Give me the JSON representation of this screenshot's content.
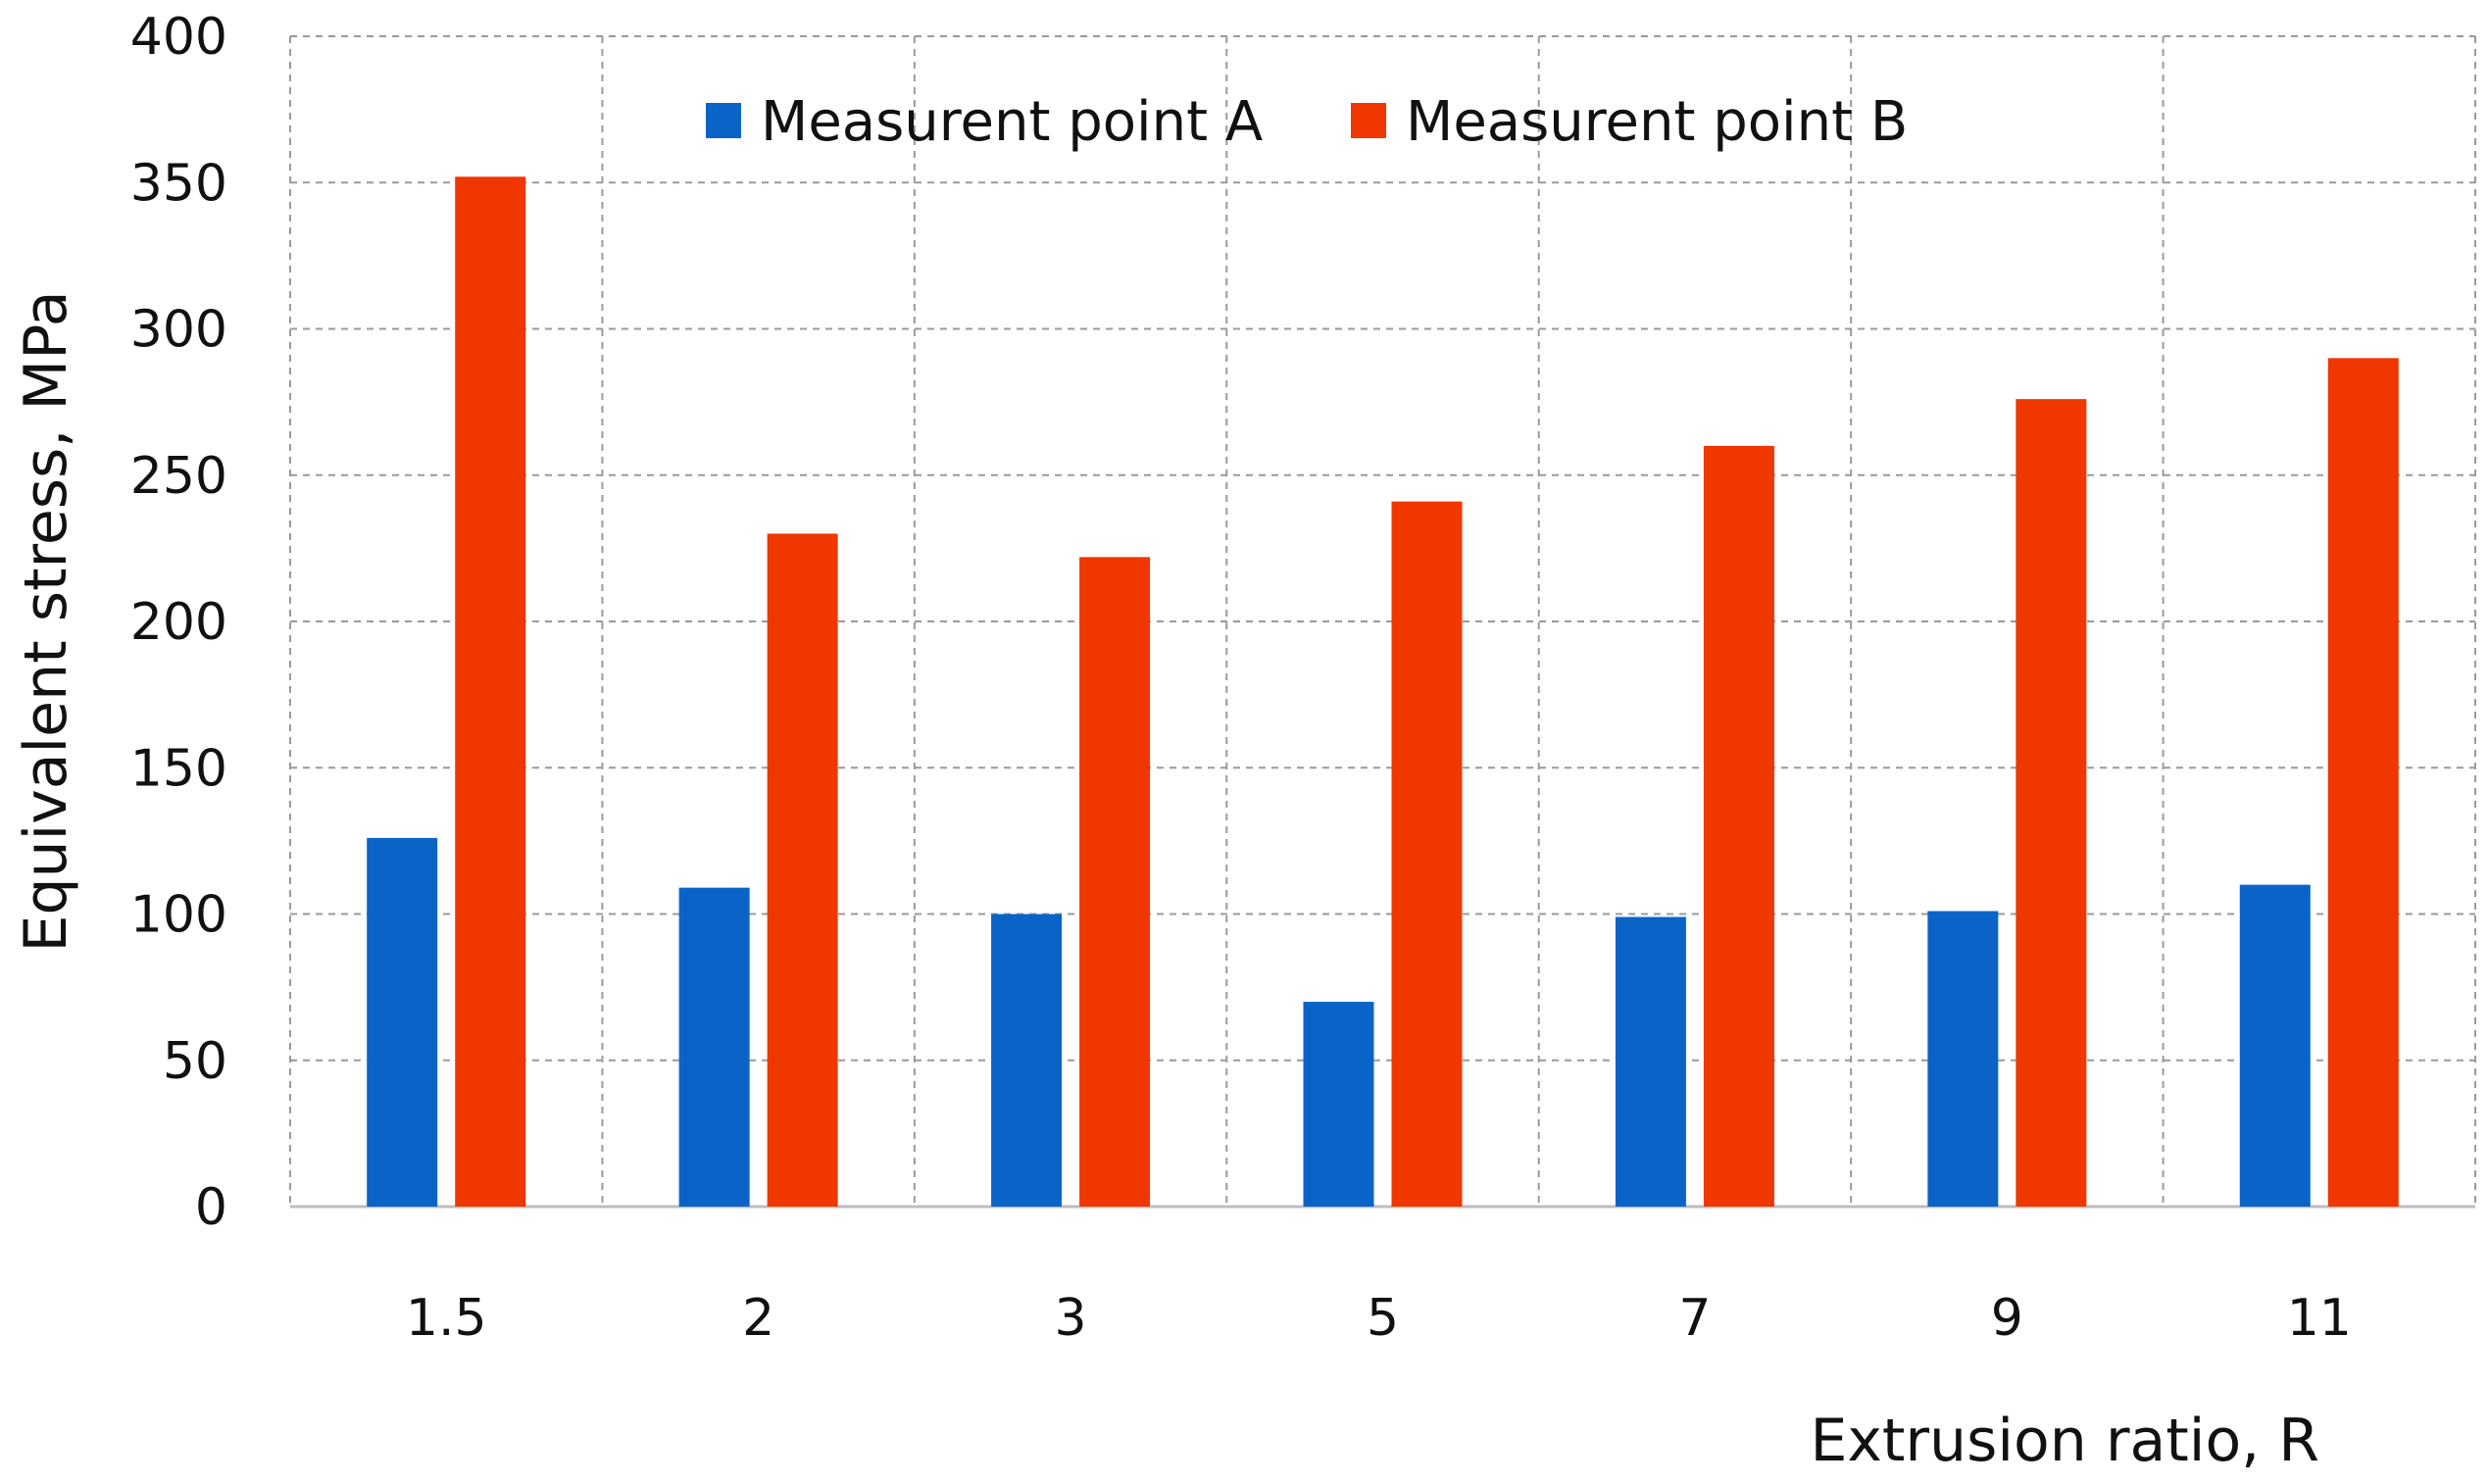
{
  "chart_data": {
    "type": "bar",
    "title": "",
    "xlabel": "Extrusion ratio, R",
    "ylabel": "Equivalent stress, MPa",
    "categories": [
      "1.5",
      "2",
      "3",
      "5",
      "7",
      "9",
      "11"
    ],
    "series": [
      {
        "name": "Measurent point A",
        "color": "#0a64c8",
        "values": [
          126,
          109,
          100,
          70,
          99,
          101,
          110
        ]
      },
      {
        "name": "Measurent point B",
        "color": "#f03700",
        "values": [
          352,
          230,
          222,
          241,
          260,
          276,
          290
        ]
      }
    ],
    "ylim": [
      0,
      400
    ],
    "yticks": [
      0,
      50,
      100,
      150,
      200,
      250,
      300,
      350,
      400
    ],
    "grid": true,
    "legend_position": "top-center"
  }
}
